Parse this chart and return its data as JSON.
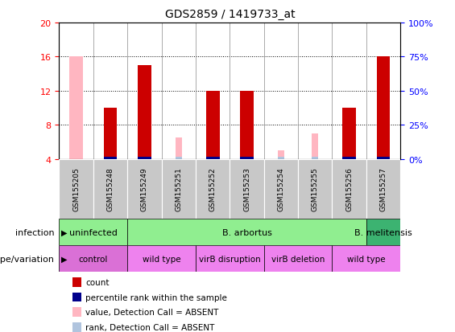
{
  "title": "GDS2859 / 1419733_at",
  "samples": [
    "GSM155205",
    "GSM155248",
    "GSM155249",
    "GSM155251",
    "GSM155252",
    "GSM155253",
    "GSM155254",
    "GSM155255",
    "GSM155256",
    "GSM155257"
  ],
  "count_values": [
    null,
    10,
    15,
    null,
    12,
    12,
    null,
    null,
    10,
    16
  ],
  "count_absent": [
    16,
    null,
    null,
    null,
    null,
    null,
    null,
    null,
    null,
    null
  ],
  "rank_values": [
    null,
    1,
    1,
    null,
    1,
    1,
    null,
    null,
    1,
    1
  ],
  "rank_absent": [
    1,
    null,
    null,
    null,
    null,
    null,
    null,
    null,
    null,
    null
  ],
  "value_absent": [
    null,
    null,
    null,
    6.5,
    null,
    null,
    5.0,
    7.0,
    null,
    null
  ],
  "percentile_absent": [
    null,
    null,
    null,
    4.2,
    null,
    null,
    4.2,
    4.2,
    null,
    null
  ],
  "ylim": [
    4,
    20
  ],
  "yticks": [
    4,
    8,
    12,
    16,
    20
  ],
  "y2lim": [
    0,
    100
  ],
  "y2ticks": [
    0,
    25,
    50,
    75,
    100
  ],
  "infection_groups": [
    {
      "label": "uninfected",
      "start": 0,
      "end": 2,
      "color": "#90ee90"
    },
    {
      "label": "B. arbortus",
      "start": 2,
      "end": 9,
      "color": "#90ee90"
    },
    {
      "label": "B. melitensis",
      "start": 9,
      "end": 10,
      "color": "#3cb371"
    }
  ],
  "genotype_groups": [
    {
      "label": "control",
      "start": 0,
      "end": 2,
      "color": "#da70d6"
    },
    {
      "label": "wild type",
      "start": 2,
      "end": 4,
      "color": "#ee82ee"
    },
    {
      "label": "virB disruption",
      "start": 4,
      "end": 6,
      "color": "#ee82ee"
    },
    {
      "label": "virB deletion",
      "start": 6,
      "end": 8,
      "color": "#ee82ee"
    },
    {
      "label": "wild type",
      "start": 8,
      "end": 10,
      "color": "#ee82ee"
    }
  ],
  "bar_width": 0.4,
  "count_color": "#cc0000",
  "rank_color": "#00008b",
  "absent_value_color": "#ffb6c1",
  "absent_rank_color": "#b0c4de",
  "sample_bg_color": "#c8c8c8",
  "background_color": "#ffffff",
  "plot_bg_color": "#ffffff",
  "grid_color": "#000000",
  "title_color": "#000000",
  "legend_items": [
    {
      "color": "#cc0000",
      "label": "count"
    },
    {
      "color": "#00008b",
      "label": "percentile rank within the sample"
    },
    {
      "color": "#ffb6c1",
      "label": "value, Detection Call = ABSENT"
    },
    {
      "color": "#b0c4de",
      "label": "rank, Detection Call = ABSENT"
    }
  ]
}
